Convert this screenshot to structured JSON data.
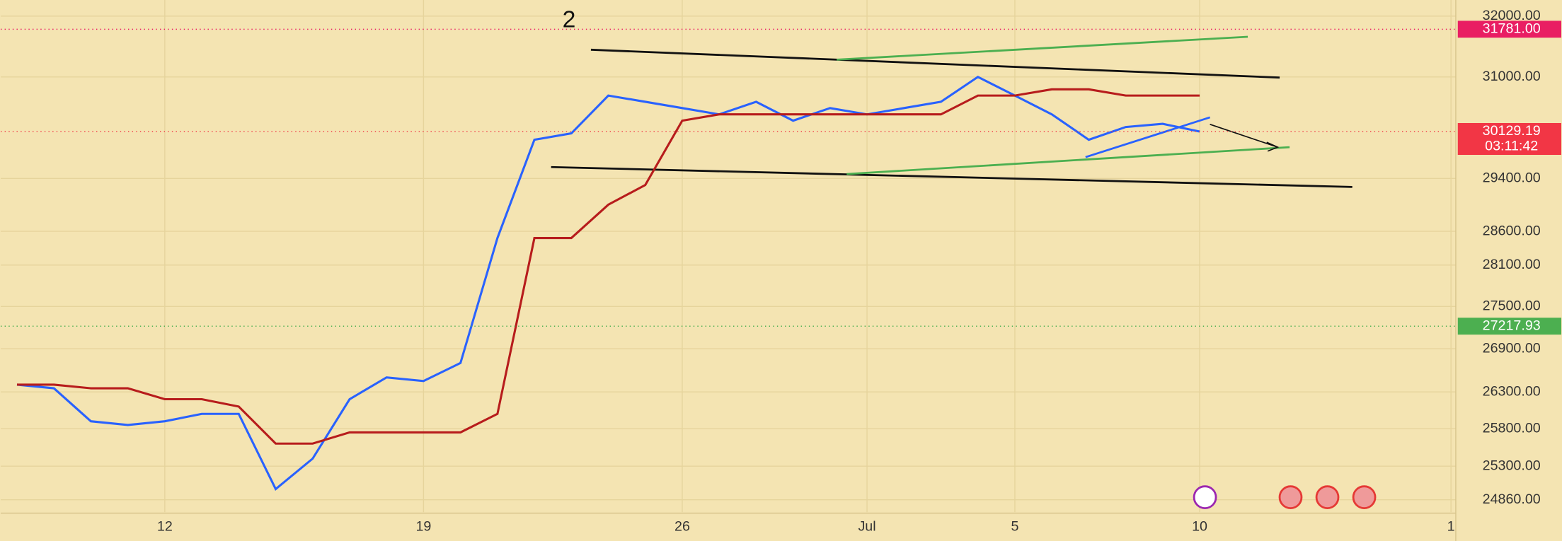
{
  "chart_data": {
    "type": "line",
    "annotation": "2",
    "log": true,
    "grid": true,
    "xlim": [
      7.56,
      46.93
    ],
    "ylim": [
      24700,
      32270
    ],
    "xticks": [
      12,
      19,
      26,
      {
        "value": 31,
        "label": "Jul"
      },
      {
        "value": 35,
        "label": "5"
      },
      {
        "value": 40,
        "label": "10"
      },
      {
        "value": 46.8,
        "label": "1"
      }
    ],
    "yticks": [
      {
        "value": 32000,
        "label": "32000.00"
      },
      {
        "value": 31000,
        "label": "31000.00"
      },
      {
        "value": 29400,
        "label": "29400.00"
      },
      {
        "value": 28600,
        "label": "28600.00"
      },
      {
        "value": 28100,
        "label": "28100.00"
      },
      {
        "value": 27500,
        "label": "27500.00"
      },
      {
        "value": 26900,
        "label": "26900.00"
      },
      {
        "value": 26300,
        "label": "26300.00"
      },
      {
        "value": 25800,
        "label": "25800.00"
      },
      {
        "value": 25300,
        "label": "25300.00"
      },
      {
        "value": 24860,
        "label": "24860.00"
      }
    ],
    "x": [
      8,
      9,
      10,
      11,
      12,
      13,
      14,
      15,
      16,
      17,
      18,
      19,
      20,
      21,
      22,
      23,
      24,
      25,
      26,
      27,
      28,
      29,
      30,
      31,
      32,
      33,
      34,
      35,
      36,
      37,
      38,
      39,
      40
    ],
    "series": [
      {
        "color": "#2962ff",
        "values": [
          26400,
          26350,
          25900,
          25850,
          25900,
          26000,
          26000,
          25000,
          25400,
          26200,
          26500,
          26450,
          26700,
          28500,
          30000,
          30100,
          30700,
          30600,
          30500,
          30400,
          30600,
          30300,
          30500,
          30400,
          30500,
          30600,
          31000,
          30700,
          30400,
          30000,
          30200,
          30250,
          30129.19
        ]
      },
      {
        "color": "#b71c1c",
        "values": [
          26400,
          26400,
          26350,
          26350,
          26200,
          26200,
          26100,
          25600,
          25600,
          25750,
          25750,
          25750,
          25750,
          26000,
          28500,
          28500,
          29000,
          29300,
          30300,
          30400,
          30400,
          30400,
          30400,
          30400,
          30400,
          30400,
          30700,
          30700,
          30800,
          30800,
          30700,
          30700,
          30700
        ]
      }
    ],
    "price_labels": [
      {
        "value": 31781,
        "label": "31781.00",
        "color": "#e91e63"
      },
      {
        "value": 30129.19,
        "label": "30129.19",
        "countdown": "03:11:42",
        "color": "#f23645"
      },
      {
        "value": 27217.93,
        "label": "27217.93",
        "color": "#4caf50"
      }
    ]
  }
}
